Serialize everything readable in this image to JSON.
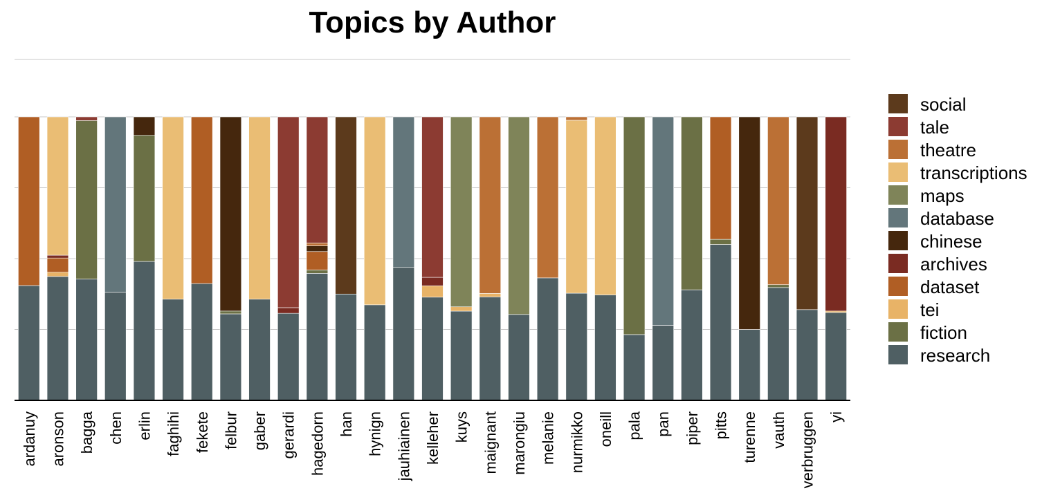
{
  "chart_data": {
    "type": "bar",
    "stacked": true,
    "normalized": true,
    "title": "Topics by Author",
    "xlabel": "",
    "ylabel": "",
    "ylim": [
      0,
      1
    ],
    "grid": true,
    "legend": "right",
    "categories": [
      "ardanuy",
      "aronson",
      "bagga",
      "chen",
      "erlin",
      "faghihi",
      "fekete",
      "felbur",
      "gaber",
      "gerardi",
      "hagedorn",
      "han",
      "hynign",
      "jauhiainen",
      "kelleher",
      "kuys",
      "maignant",
      "marongiu",
      "melanie",
      "nurmikko",
      "oneill",
      "pala",
      "pan",
      "piper",
      "pitts",
      "turenne",
      "vauth",
      "verbruggen",
      "yi"
    ],
    "series": [
      {
        "name": "research",
        "color": "#4f5f63",
        "values": [
          0.405,
          0.437,
          0.428,
          0.382,
          0.49,
          0.357,
          0.412,
          0.305,
          0.357,
          0.307,
          0.448,
          0.375,
          0.337,
          0.469,
          0.364,
          0.31,
          0.365,
          0.303,
          0.432,
          0.378,
          0.372,
          0.232,
          0.265,
          0.39,
          0.55,
          0.25,
          0.398,
          0.32,
          0.31
        ]
      },
      {
        "name": "fiction",
        "color": "#6b7045",
        "values": [
          0,
          0,
          0.559,
          0,
          0.445,
          0,
          0,
          0.01,
          0,
          0,
          0.012,
          0,
          0,
          0,
          0,
          0,
          0,
          0,
          0,
          0,
          0,
          0.768,
          0,
          0.61,
          0.018,
          0,
          0.01,
          0,
          0
        ]
      },
      {
        "name": "tei",
        "color": "#e8b367",
        "values": [
          0,
          0.015,
          0,
          0,
          0,
          0,
          0,
          0,
          0,
          0,
          0,
          0,
          0,
          0,
          0.04,
          0.015,
          0.012,
          0,
          0,
          0,
          0,
          0,
          0,
          0,
          0,
          0,
          0,
          0,
          0.005
        ]
      },
      {
        "name": "dataset",
        "color": "#b05e24",
        "values": [
          0.595,
          0.05,
          0,
          0,
          0,
          0,
          0.588,
          0,
          0,
          0,
          0.065,
          0,
          0,
          0,
          0,
          0,
          0,
          0,
          0,
          0,
          0,
          0,
          0,
          0,
          0.432,
          0,
          0,
          0,
          0
        ]
      },
      {
        "name": "archives",
        "color": "#7a2b22",
        "values": [
          0,
          0.01,
          0,
          0,
          0,
          0,
          0,
          0,
          0,
          0.02,
          0,
          0,
          0,
          0,
          0.03,
          0,
          0,
          0,
          0,
          0,
          0,
          0,
          0,
          0,
          0,
          0,
          0,
          0,
          0.685
        ]
      },
      {
        "name": "chinese",
        "color": "#45270d",
        "values": [
          0,
          0,
          0,
          0,
          0.065,
          0,
          0,
          0.685,
          0,
          0,
          0.02,
          0,
          0,
          0,
          0,
          0,
          0,
          0,
          0,
          0,
          0,
          0,
          0,
          0,
          0,
          0.75,
          0,
          0,
          0
        ]
      },
      {
        "name": "database",
        "color": "#63767b",
        "values": [
          0,
          0,
          0,
          0.618,
          0,
          0,
          0,
          0,
          0,
          0,
          0,
          0,
          0,
          0.531,
          0,
          0,
          0,
          0,
          0,
          0,
          0,
          0,
          0.735,
          0,
          0,
          0,
          0,
          0,
          0
        ]
      },
      {
        "name": "maps",
        "color": "#7f8459",
        "values": [
          0,
          0,
          0,
          0,
          0,
          0,
          0,
          0,
          0,
          0,
          0,
          0,
          0,
          0,
          0,
          0.66,
          0,
          0.697,
          0,
          0,
          0,
          0,
          0,
          0,
          0,
          0,
          0,
          0,
          0
        ]
      },
      {
        "name": "transcriptions",
        "color": "#eabd74",
        "values": [
          0,
          0.488,
          0,
          0,
          0,
          0.643,
          0,
          0,
          0.643,
          0,
          0,
          0,
          0.663,
          0,
          0,
          0,
          0,
          0,
          0,
          0.61,
          0.628,
          0,
          0,
          0,
          0,
          0,
          0,
          0,
          0
        ]
      },
      {
        "name": "theatre",
        "color": "#bb7035",
        "values": [
          0,
          0,
          0,
          0,
          0,
          0,
          0,
          0,
          0,
          0,
          0.01,
          0,
          0,
          0,
          0,
          0,
          0.623,
          0,
          0.568,
          0.012,
          0,
          0,
          0,
          0,
          0,
          0,
          0.592,
          0,
          0
        ]
      },
      {
        "name": "tale",
        "color": "#8c3b32",
        "values": [
          0,
          0,
          0.013,
          0,
          0,
          0,
          0,
          0,
          0,
          0.673,
          0.445,
          0,
          0,
          0,
          0.566,
          0,
          0,
          0,
          0,
          0,
          0,
          0,
          0,
          0,
          0,
          0,
          0,
          0,
          0
        ]
      },
      {
        "name": "social",
        "color": "#5c3a1c",
        "values": [
          0,
          0,
          0,
          0,
          0,
          0,
          0,
          0,
          0,
          0,
          0,
          0.625,
          0,
          0,
          0,
          0,
          0,
          0,
          0,
          0,
          0,
          0,
          0,
          0,
          0,
          0,
          0,
          0.68,
          0
        ]
      }
    ]
  }
}
